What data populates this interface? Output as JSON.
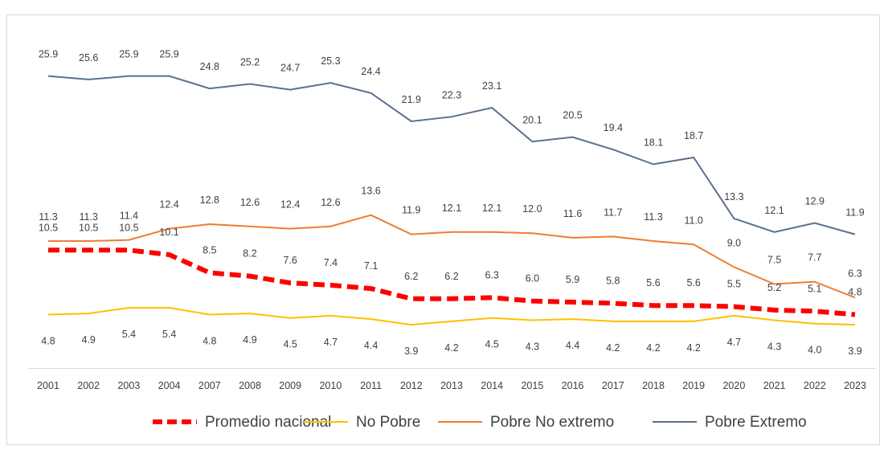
{
  "chart_data": {
    "type": "line",
    "categories": [
      "2001",
      "2002",
      "2003",
      "2004",
      "2007",
      "2008",
      "2009",
      "2010",
      "2011",
      "2012",
      "2013",
      "2014",
      "2015",
      "2016",
      "2017",
      "2018",
      "2019",
      "2020",
      "2021",
      "2022",
      "2023"
    ],
    "ylim": [
      0,
      30
    ],
    "series": [
      {
        "name": "Promedio nacional",
        "color": "#ff0000",
        "dashed": true,
        "values": [
          10.5,
          10.5,
          10.5,
          10.1,
          8.5,
          8.2,
          7.6,
          7.4,
          7.1,
          6.2,
          6.2,
          6.3,
          6.0,
          5.9,
          5.8,
          5.6,
          5.6,
          5.5,
          5.2,
          5.1,
          4.8
        ],
        "value_labels": [
          "10.5",
          "10.5",
          "10.5",
          "10.1",
          "8.5",
          "8.2",
          "7.6",
          "7.4",
          "7.1",
          "6.2",
          "6.2",
          "6.3",
          "6.0",
          "5.9",
          "5.8",
          "5.6",
          "5.6",
          "5.5",
          "5.2",
          "5.1",
          "4.8"
        ]
      },
      {
        "name": "No Pobre",
        "color": "#ffc000",
        "values": [
          4.8,
          4.9,
          5.4,
          5.4,
          4.8,
          4.9,
          4.5,
          4.7,
          4.4,
          3.9,
          4.2,
          4.5,
          4.3,
          4.4,
          4.2,
          4.2,
          4.2,
          4.7,
          4.3,
          4.0,
          3.9
        ],
        "value_labels": [
          "4.8",
          "4.9",
          "5.4",
          "5.4",
          "4.8",
          "4.9",
          "4.5",
          "4.7",
          "4.4",
          "3.9",
          "4.2",
          "4.5",
          "4.3",
          "4.4",
          "4.2",
          "4.2",
          "4.2",
          "4.7",
          "4.3",
          "4.0",
          "3.9"
        ]
      },
      {
        "name": "Pobre No extremo",
        "color": "#ed7d31",
        "values": [
          11.3,
          11.3,
          11.4,
          12.4,
          12.8,
          12.6,
          12.4,
          12.6,
          13.6,
          11.9,
          12.1,
          12.1,
          12.0,
          11.6,
          11.7,
          11.3,
          11.0,
          9.0,
          7.5,
          7.7,
          6.3
        ],
        "value_labels": [
          "11.3",
          "11.3",
          "11.4",
          "12.4",
          "12.8",
          "12.6",
          "12.4",
          "12.6",
          "13.6",
          "11.9",
          "12.1",
          "12.1",
          "12.0",
          "11.6",
          "11.7",
          "11.3",
          "11.0",
          "9.0",
          "7.5",
          "7.7",
          "6.3"
        ]
      },
      {
        "name": "Pobre Extremo",
        "color": "#5b708f",
        "values": [
          25.9,
          25.6,
          25.9,
          25.9,
          24.8,
          25.2,
          24.7,
          25.3,
          24.4,
          21.9,
          22.3,
          23.1,
          20.1,
          20.5,
          19.4,
          18.1,
          18.7,
          13.3,
          12.1,
          12.9,
          11.9
        ],
        "value_labels": [
          "25.9",
          "25.6",
          "25.9",
          "25.9",
          "24.8",
          "25.2",
          "24.7",
          "25.3",
          "24.4",
          "21.9",
          "22.3",
          "23.1",
          "20.1",
          "20.5",
          "19.4",
          "18.1",
          "18.7",
          "13.3",
          "12.1",
          "12.9",
          "11.9"
        ]
      }
    ]
  }
}
